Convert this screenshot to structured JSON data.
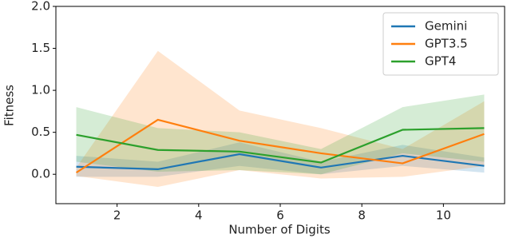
{
  "chart_data": {
    "type": "line",
    "xlabel": "Number of Digits",
    "ylabel": "Fitness",
    "x": [
      1,
      3,
      5,
      7,
      9,
      11
    ],
    "series": [
      {
        "name": "Gemini",
        "color": "#1f77b4",
        "values": [
          0.09,
          0.06,
          0.24,
          0.08,
          0.22,
          0.1
        ],
        "upper": [
          0.22,
          0.15,
          0.38,
          0.15,
          0.35,
          0.2
        ],
        "lower": [
          -0.03,
          -0.03,
          0.1,
          0.0,
          0.1,
          0.02
        ]
      },
      {
        "name": "GPT3.5",
        "color": "#ff7f0e",
        "values": [
          0.02,
          0.65,
          0.4,
          0.25,
          0.13,
          0.48
        ],
        "upper": [
          0.08,
          1.47,
          0.76,
          0.55,
          0.3,
          0.87
        ],
        "lower": [
          -0.02,
          -0.15,
          0.05,
          -0.05,
          -0.03,
          0.1
        ]
      },
      {
        "name": "GPT4",
        "color": "#2ca02c",
        "values": [
          0.47,
          0.29,
          0.27,
          0.14,
          0.53,
          0.55
        ],
        "upper": [
          0.8,
          0.55,
          0.5,
          0.3,
          0.8,
          0.95
        ],
        "lower": [
          0.15,
          0.03,
          0.05,
          0.0,
          0.25,
          0.15
        ]
      }
    ],
    "xlim": [
      0.5,
      11.5
    ],
    "ylim": [
      -0.35,
      2.0
    ],
    "xticks": [
      2,
      4,
      6,
      8,
      10
    ],
    "yticks": [
      {
        "value": 0.0,
        "label": "0.0"
      },
      0.5,
      {
        "value": 1.0,
        "label": "1.0"
      },
      1.5,
      {
        "value": 2.0,
        "label": "2.0"
      }
    ],
    "legend": "upper right"
  }
}
